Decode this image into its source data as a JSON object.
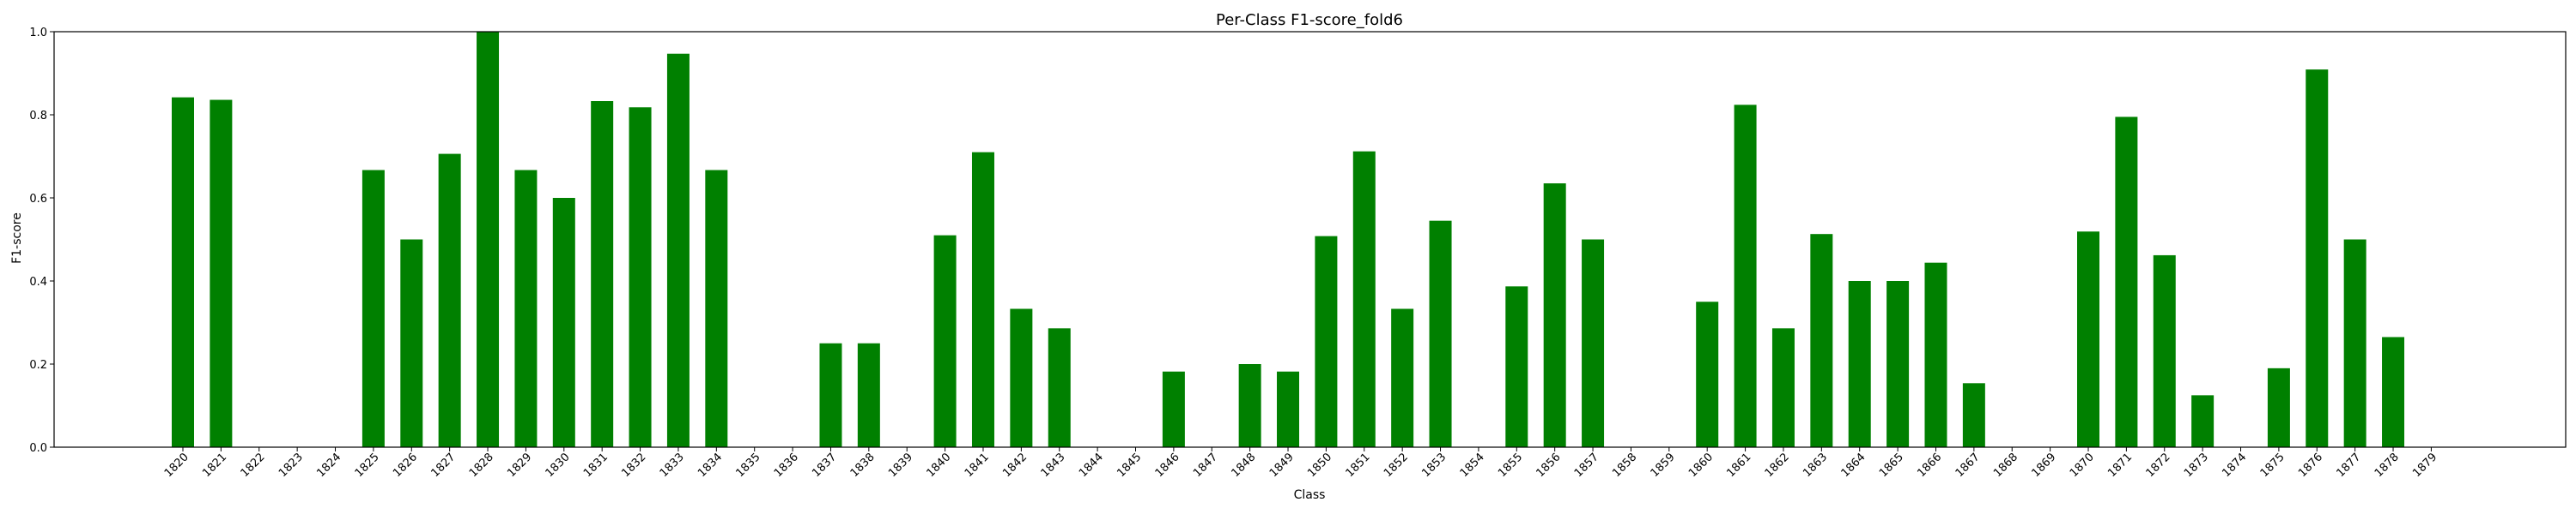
{
  "chart_data": {
    "type": "bar",
    "title": "Per-Class F1-score_fold6",
    "xlabel": "Class",
    "ylabel": "F1-score",
    "ylim": [
      0,
      1.0
    ],
    "yticks": [
      0.0,
      0.2,
      0.4,
      0.6,
      0.8,
      1.0
    ],
    "ytick_labels": [
      "0.0",
      "0.2",
      "0.4",
      "0.6",
      "0.8",
      "1.0"
    ],
    "grid": false,
    "bar_color": "#008000",
    "categories": [
      "1820",
      "1821",
      "1822",
      "1823",
      "1824",
      "1825",
      "1826",
      "1827",
      "1828",
      "1829",
      "1830",
      "1831",
      "1832",
      "1833",
      "1834",
      "1835",
      "1836",
      "1837",
      "1838",
      "1839",
      "1840",
      "1841",
      "1842",
      "1843",
      "1844",
      "1845",
      "1846",
      "1847",
      "1848",
      "1849",
      "1850",
      "1851",
      "1852",
      "1853",
      "1854",
      "1855",
      "1856",
      "1857",
      "1858",
      "1859",
      "1860",
      "1861",
      "1862",
      "1863",
      "1864",
      "1865",
      "1866",
      "1867",
      "1868",
      "1869",
      "1870",
      "1871",
      "1872",
      "1873",
      "1874",
      "1875",
      "1876",
      "1877",
      "1878",
      "1879"
    ],
    "values": [
      0.842,
      0.836,
      0,
      0,
      0,
      0.667,
      0.5,
      0.706,
      1.0,
      0.667,
      0.6,
      0.833,
      0.818,
      0.947,
      0.667,
      0,
      0,
      0.25,
      0.25,
      0,
      0.51,
      0.71,
      0.333,
      0.286,
      0,
      0,
      0.182,
      0,
      0.2,
      0.182,
      0.508,
      0.712,
      0.333,
      0.545,
      0,
      0.387,
      0.635,
      0.5,
      0,
      0,
      0.35,
      0.824,
      0.286,
      0.513,
      0.4,
      0.4,
      0.444,
      0.154,
      0,
      0,
      0.519,
      0.795,
      0.462,
      0.125,
      0,
      0.19,
      0.909,
      0.5,
      0.265,
      0
    ]
  }
}
